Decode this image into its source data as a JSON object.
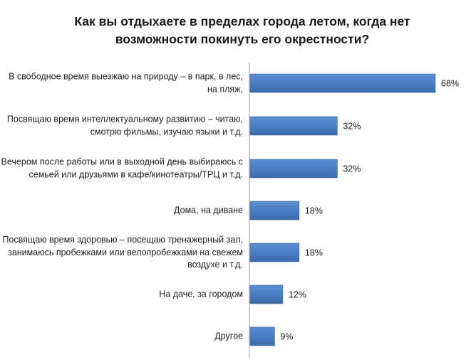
{
  "chart_data": {
    "type": "bar",
    "orientation": "horizontal",
    "title": "Как вы отдыхаете в пределах города летом, когда нет возможности покинуть его окрестности?",
    "categories": [
      "В свободное время выезжаю на природу – в парк, в лес, на пляж,",
      "Посвящаю время интеллектуальному развитию – читаю, смотрю фильмы, изучаю языки и т.д.",
      "Вечером после работы или в выходной день выбираюсь с семьей или друзьями в кафе/кинотеатры/ТРЦ и т.д.",
      "Дома, на диване",
      "Посвящаю время здоровью – посещаю тренажерный зал, занимаюсь пробежками или велопробежками на свежем воздухе и т.д.",
      "На даче, за городом",
      "Другое"
    ],
    "values": [
      68,
      32,
      32,
      18,
      18,
      12,
      9
    ],
    "value_labels": [
      "68%",
      "32%",
      "32%",
      "18%",
      "18%",
      "12%",
      "9%"
    ],
    "unit": "%",
    "xlim": [
      0,
      68
    ],
    "grid": false,
    "bar_color": "#4a7ec4"
  }
}
